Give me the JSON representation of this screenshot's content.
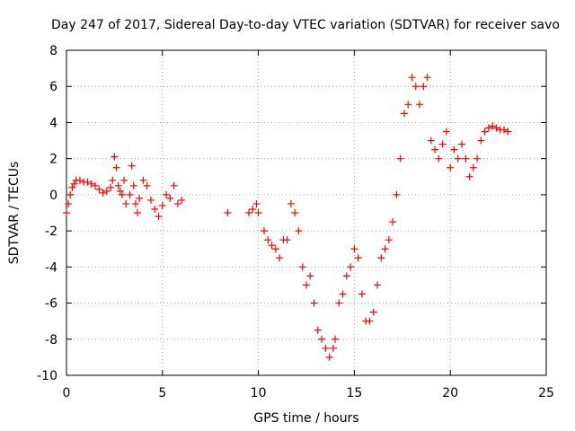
{
  "chart_data": {
    "type": "scatter",
    "title": "Day 247 of 2017, Sidereal Day-to-day VTEC variation (SDTVAR) for receiver savo",
    "xlabel": "GPS time / hours",
    "ylabel": "SDTVAR / TECUs",
    "xlim": [
      0,
      25
    ],
    "ylim": [
      -10,
      8
    ],
    "xticks": [
      "0",
      "5",
      "10",
      "15",
      "20",
      "25"
    ],
    "yticks": [
      "-10",
      "-8",
      "-6",
      "-4",
      "-2",
      "0",
      "2",
      "4",
      "6",
      "8"
    ],
    "grid": true,
    "marker": "+",
    "color": "#ff0000",
    "series": [
      {
        "name": "SDTVAR",
        "x": [
          0.0,
          0.1,
          0.2,
          0.3,
          0.4,
          0.5,
          0.7,
          0.9,
          1.1,
          1.3,
          1.5,
          1.7,
          1.9,
          2.1,
          2.3,
          2.4,
          2.5,
          2.6,
          2.7,
          2.8,
          2.9,
          3.0,
          3.1,
          3.3,
          3.4,
          3.5,
          3.6,
          3.7,
          3.8,
          4.0,
          4.2,
          4.4,
          4.6,
          4.8,
          5.0,
          5.2,
          5.4,
          5.6,
          5.8,
          6.0,
          8.4,
          9.5,
          9.7,
          9.9,
          10.0,
          10.3,
          10.5,
          10.7,
          10.9,
          11.1,
          11.3,
          11.5,
          11.7,
          11.9,
          12.1,
          12.3,
          12.5,
          12.7,
          12.9,
          13.1,
          13.3,
          13.5,
          13.7,
          13.9,
          14.0,
          14.2,
          14.4,
          14.6,
          14.8,
          15.0,
          15.2,
          15.4,
          15.6,
          15.8,
          16.0,
          16.2,
          16.4,
          16.6,
          16.8,
          17.0,
          17.2,
          17.4,
          17.6,
          17.8,
          18.0,
          18.2,
          18.4,
          18.6,
          18.8,
          19.0,
          19.2,
          19.4,
          19.6,
          19.8,
          20.0,
          20.2,
          20.4,
          20.6,
          20.8,
          21.0,
          21.2,
          21.4,
          21.6,
          21.8,
          22.0,
          22.2,
          22.4,
          22.6,
          22.8,
          23.0
        ],
        "y": [
          -1.0,
          -0.5,
          0.0,
          0.4,
          0.6,
          0.8,
          0.8,
          0.7,
          0.7,
          0.6,
          0.5,
          0.3,
          0.1,
          0.2,
          0.4,
          0.8,
          2.1,
          1.5,
          0.5,
          0.2,
          0.0,
          0.8,
          -0.5,
          0.0,
          1.6,
          0.5,
          -0.5,
          -1.0,
          -0.2,
          0.8,
          0.5,
          -0.3,
          -0.8,
          -1.2,
          -0.6,
          0.0,
          -0.2,
          0.5,
          -0.5,
          -0.3,
          -1.0,
          -1.0,
          -0.8,
          -0.5,
          -1.0,
          -2.0,
          -2.5,
          -2.8,
          -3.0,
          -3.5,
          -2.5,
          -2.5,
          -0.5,
          -1.0,
          -2.0,
          -4.0,
          -5.0,
          -4.5,
          -6.0,
          -7.5,
          -8.0,
          -8.5,
          -9.0,
          -8.5,
          -8.0,
          -6.0,
          -5.5,
          -4.5,
          -4.0,
          -3.0,
          -3.5,
          -5.5,
          -7.0,
          -7.0,
          -6.5,
          -5.0,
          -3.5,
          -3.0,
          -2.5,
          -1.5,
          0.0,
          2.0,
          4.5,
          5.0,
          6.5,
          6.0,
          5.0,
          6.0,
          6.5,
          3.0,
          2.5,
          2.0,
          2.8,
          3.5,
          1.5,
          2.5,
          2.0,
          2.8,
          2.0,
          1.0,
          1.5,
          2.0,
          3.0,
          3.5,
          3.7,
          3.8,
          3.7,
          3.6,
          3.6,
          3.5
        ]
      }
    ]
  }
}
